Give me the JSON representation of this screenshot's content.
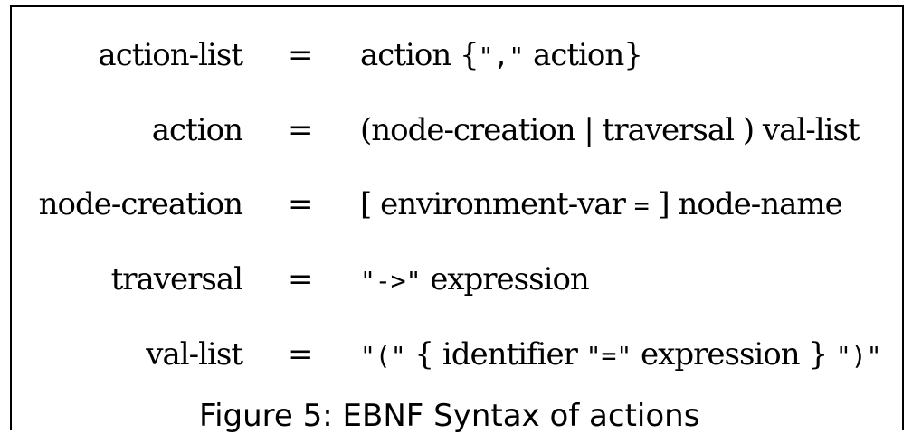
{
  "grammar": {
    "rules": [
      {
        "lhs": "action-list",
        "eq": "=",
        "rhs": [
          "action {",
          "\",\"",
          " action}"
        ]
      },
      {
        "lhs": "action",
        "eq": "=",
        "rhs": [
          "(node-creation | traversal ) val-list"
        ]
      },
      {
        "lhs": "node-creation",
        "eq": "=",
        "rhs": [
          "[ environment-var ",
          "=",
          " ] node-name"
        ]
      },
      {
        "lhs": "traversal",
        "eq": "=",
        "rhs": [
          "\"->\"",
          " expression"
        ]
      },
      {
        "lhs": "val-list",
        "eq": "=",
        "rhs": [
          "\"(\"",
          " { identifier ",
          "\"=\"",
          " expression } ",
          "\")\""
        ]
      }
    ]
  },
  "caption": "Figure 5: EBNF Syntax of actions"
}
